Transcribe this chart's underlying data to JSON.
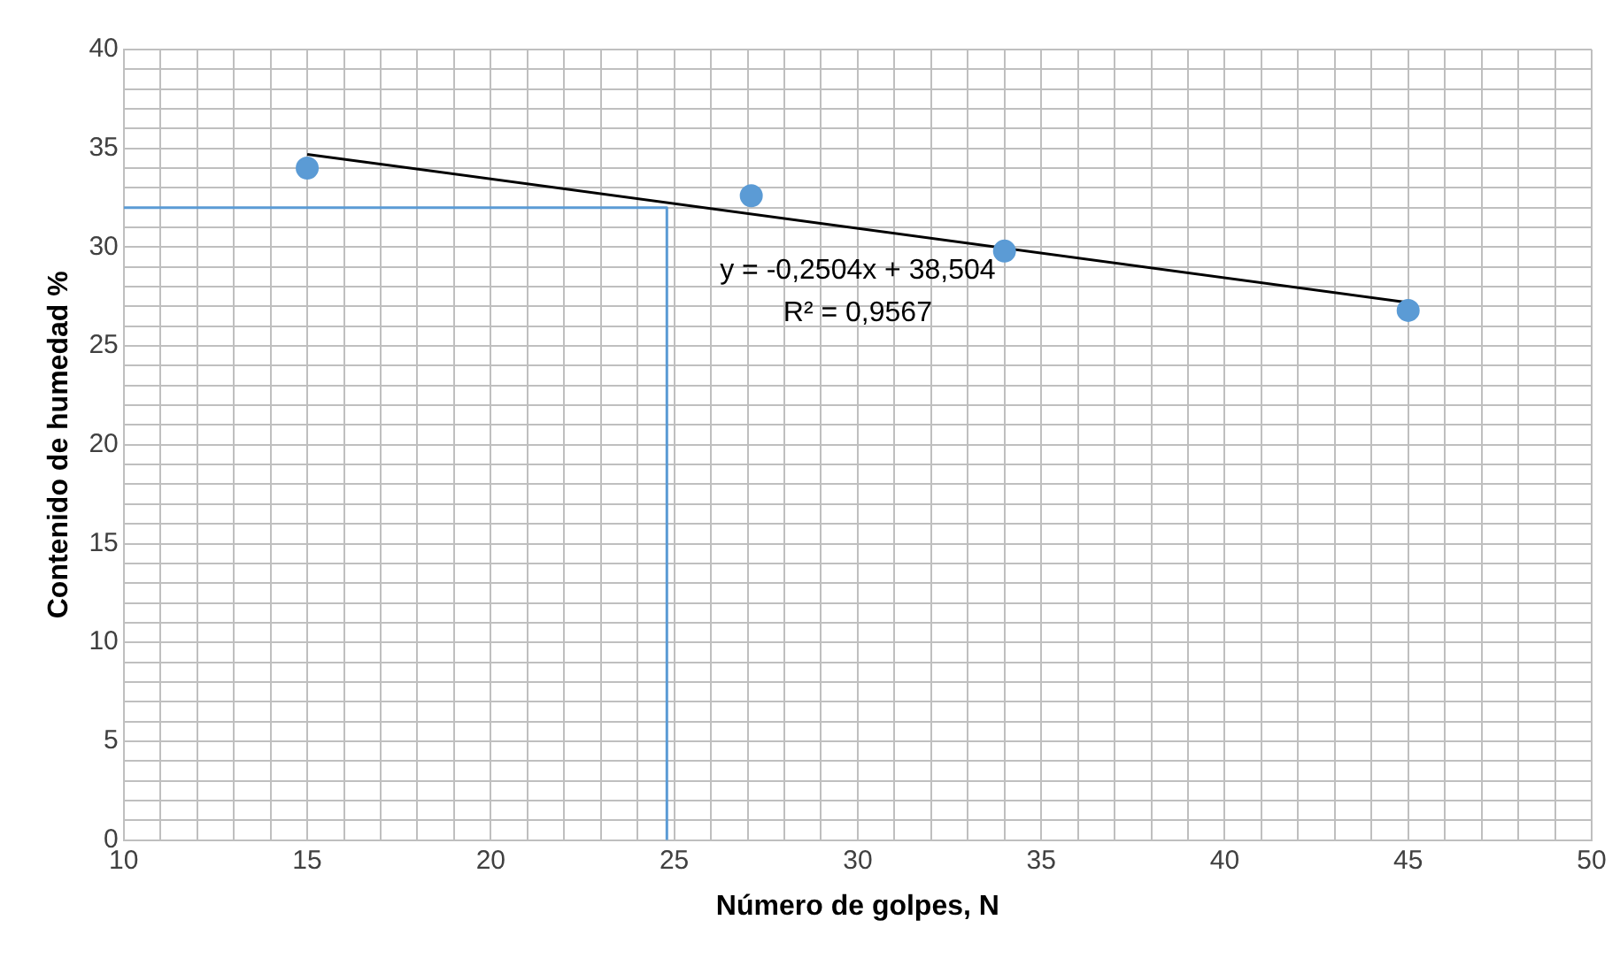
{
  "chart_data": {
    "type": "scatter",
    "xlabel": "Número de golpes, N",
    "ylabel": "Contenido de humedad %",
    "xlim": [
      10,
      50
    ],
    "ylim": [
      0,
      40
    ],
    "xticks": [
      10,
      {
        "value": 11,
        "label": null
      },
      {
        "value": 12,
        "label": null
      },
      {
        "value": 13,
        "label": null
      },
      {
        "value": 14,
        "label": null
      },
      15,
      {
        "value": 16,
        "label": null
      },
      {
        "value": 17,
        "label": null
      },
      {
        "value": 18,
        "label": null
      },
      {
        "value": 19,
        "label": null
      },
      20,
      {
        "value": 21,
        "label": null
      },
      {
        "value": 22,
        "label": null
      },
      {
        "value": 23,
        "label": null
      },
      {
        "value": 24,
        "label": null
      },
      25,
      {
        "value": 26,
        "label": null
      },
      {
        "value": 27,
        "label": null
      },
      {
        "value": 28,
        "label": null
      },
      {
        "value": 29,
        "label": null
      },
      30,
      {
        "value": 31,
        "label": null
      },
      {
        "value": 32,
        "label": null
      },
      {
        "value": 33,
        "label": null
      },
      {
        "value": 34,
        "label": null
      },
      35,
      {
        "value": 36,
        "label": null
      },
      {
        "value": 37,
        "label": null
      },
      {
        "value": 38,
        "label": null
      },
      {
        "value": 39,
        "label": null
      },
      40,
      {
        "value": 41,
        "label": null
      },
      {
        "value": 42,
        "label": null
      },
      {
        "value": 43,
        "label": null
      },
      {
        "value": 44,
        "label": null
      },
      45,
      {
        "value": 46,
        "label": null
      },
      {
        "value": 47,
        "label": null
      },
      {
        "value": 48,
        "label": null
      },
      {
        "value": 49,
        "label": null
      },
      50
    ],
    "yticks": [
      0,
      {
        "value": 1,
        "label": null
      },
      {
        "value": 2,
        "label": null
      },
      {
        "value": 3,
        "label": null
      },
      {
        "value": 4,
        "label": null
      },
      5,
      {
        "value": 6,
        "label": null
      },
      {
        "value": 7,
        "label": null
      },
      {
        "value": 8,
        "label": null
      },
      {
        "value": 9,
        "label": null
      },
      10,
      {
        "value": 11,
        "label": null
      },
      {
        "value": 12,
        "label": null
      },
      {
        "value": 13,
        "label": null
      },
      {
        "value": 14,
        "label": null
      },
      15,
      {
        "value": 16,
        "label": null
      },
      {
        "value": 17,
        "label": null
      },
      {
        "value": 18,
        "label": null
      },
      {
        "value": 19,
        "label": null
      },
      20,
      {
        "value": 21,
        "label": null
      },
      {
        "value": 22,
        "label": null
      },
      {
        "value": 23,
        "label": null
      },
      {
        "value": 24,
        "label": null
      },
      25,
      {
        "value": 26,
        "label": null
      },
      {
        "value": 27,
        "label": null
      },
      {
        "value": 28,
        "label": null
      },
      {
        "value": 29,
        "label": null
      },
      30,
      {
        "value": 31,
        "label": null
      },
      {
        "value": 32,
        "label": null
      },
      {
        "value": 33,
        "label": null
      },
      {
        "value": 34,
        "label": null
      },
      35,
      {
        "value": 36,
        "label": null
      },
      {
        "value": 37,
        "label": null
      },
      {
        "value": 38,
        "label": null
      },
      {
        "value": 39,
        "label": null
      },
      40
    ],
    "grid": true,
    "legend": false,
    "series": [
      {
        "color": "#5b9bd5",
        "marker": "circle",
        "x": [
          15,
          27.1,
          34,
          45
        ],
        "values": [
          34.0,
          32.6,
          29.8,
          26.8
        ]
      },
      {
        "type": "line",
        "color": "#000000",
        "marker": "none",
        "x": [
          15,
          45
        ],
        "values": [
          34.7,
          27.2
        ]
      },
      {
        "type": "line",
        "color": "#5b9bd5",
        "marker": "none",
        "x": [
          10,
          24.8,
          24.8
        ],
        "values": [
          32,
          32,
          0
        ]
      }
    ],
    "annotations": [
      "y = -0,2504x + 38,504",
      "R² = 0,9567"
    ]
  }
}
